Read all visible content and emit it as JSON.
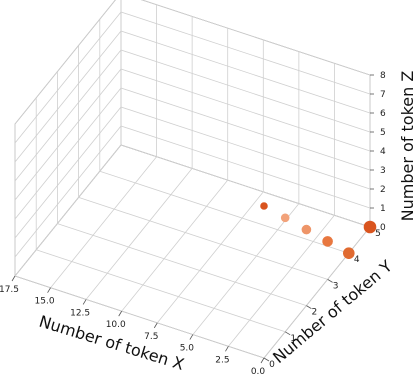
{
  "chart_data": {
    "type": "scatter",
    "projection": "3d",
    "title": "",
    "xlabel": "Number of token X",
    "ylabel": "Number of token Y",
    "zlabel": "Number of token Z",
    "xlim": [
      0,
      17.5
    ],
    "ylim": [
      0,
      5
    ],
    "zlim": [
      0,
      8
    ],
    "x_ticks": [
      "0.0",
      "2.5",
      "5.0",
      "7.5",
      "10.0",
      "12.5",
      "15.0",
      "17.5"
    ],
    "y_ticks": [
      "0",
      "1",
      "2",
      "3",
      "4",
      "5"
    ],
    "z_ticks": [
      "0",
      "1",
      "2",
      "3",
      "4",
      "5",
      "6",
      "7",
      "8"
    ],
    "grid": true,
    "points": [
      {
        "x": 0,
        "y": 0,
        "z": 8,
        "color": "#d9541e"
      },
      {
        "x": 0,
        "y": 1,
        "z": 6,
        "color": "#f2a27a"
      },
      {
        "x": 0,
        "y": 2,
        "z": 4,
        "color": "#ee9568"
      },
      {
        "x": 0,
        "y": 3,
        "z": 2,
        "color": "#e8773f"
      },
      {
        "x": 0,
        "y": 4,
        "z": 0,
        "color": "#e06a30"
      },
      {
        "x": 0,
        "y": 5,
        "z": 0,
        "color": "#d9541e"
      }
    ]
  }
}
